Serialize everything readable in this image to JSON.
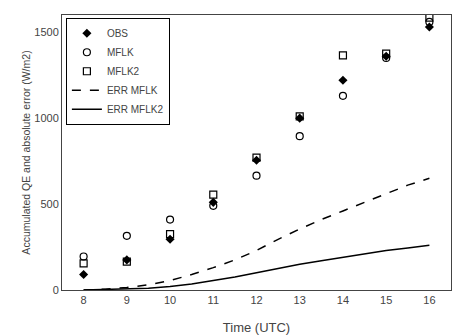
{
  "chart_data": {
    "type": "line",
    "xlabel": "Time (UTC)",
    "ylabel": "Accumulated QE and absolute error (W/m2)",
    "series": [
      {
        "name": "OBS",
        "type": "scatter",
        "marker": "diamond",
        "color": "black",
        "x": [
          8,
          9,
          10,
          11,
          12,
          13,
          14,
          15,
          16
        ],
        "values": [
          90,
          175,
          295,
          510,
          755,
          1000,
          1220,
          1360,
          1530
        ]
      },
      {
        "name": "MFLK",
        "type": "scatter",
        "marker": "circle-open",
        "color": "black",
        "x": [
          8,
          9,
          10,
          11,
          12,
          13,
          14,
          15,
          16
        ],
        "values": [
          195,
          315,
          410,
          490,
          665,
          895,
          1130,
          1350,
          1560
        ]
      },
      {
        "name": "MFLK2",
        "type": "scatter",
        "marker": "square-open",
        "color": "black",
        "x": [
          8,
          9,
          10,
          11,
          12,
          13,
          14,
          15,
          16
        ],
        "values": [
          155,
          165,
          325,
          555,
          770,
          1010,
          1365,
          1375,
          1585
        ]
      },
      {
        "name": "ERR MFLK",
        "type": "line",
        "line_style": "dashed",
        "color": "black",
        "x": [
          8,
          8.5,
          9,
          9.5,
          10,
          10.5,
          11,
          11.5,
          12,
          12.5,
          13,
          13.5,
          14,
          14.5,
          15,
          15.5,
          16
        ],
        "values": [
          0,
          5,
          15,
          30,
          55,
          90,
          130,
          175,
          230,
          295,
          355,
          410,
          460,
          510,
          560,
          610,
          650
        ]
      },
      {
        "name": "ERR MFLK2",
        "type": "line",
        "line_style": "solid",
        "color": "black",
        "x": [
          8,
          8.5,
          9,
          9.5,
          10,
          10.5,
          11,
          11.5,
          12,
          12.5,
          13,
          13.5,
          14,
          14.5,
          15,
          15.5,
          16
        ],
        "values": [
          0,
          2,
          5,
          10,
          20,
          35,
          55,
          75,
          100,
          125,
          150,
          170,
          190,
          210,
          230,
          245,
          260
        ]
      }
    ],
    "xlim": [
      7.5,
      16.5
    ],
    "ylim": [
      0,
      1600
    ],
    "xticks": [
      8,
      9,
      10,
      11,
      12,
      13,
      14,
      15,
      16
    ],
    "yticks": [
      0,
      500,
      1000,
      1500
    ],
    "grid": false,
    "legend": "upper left"
  }
}
